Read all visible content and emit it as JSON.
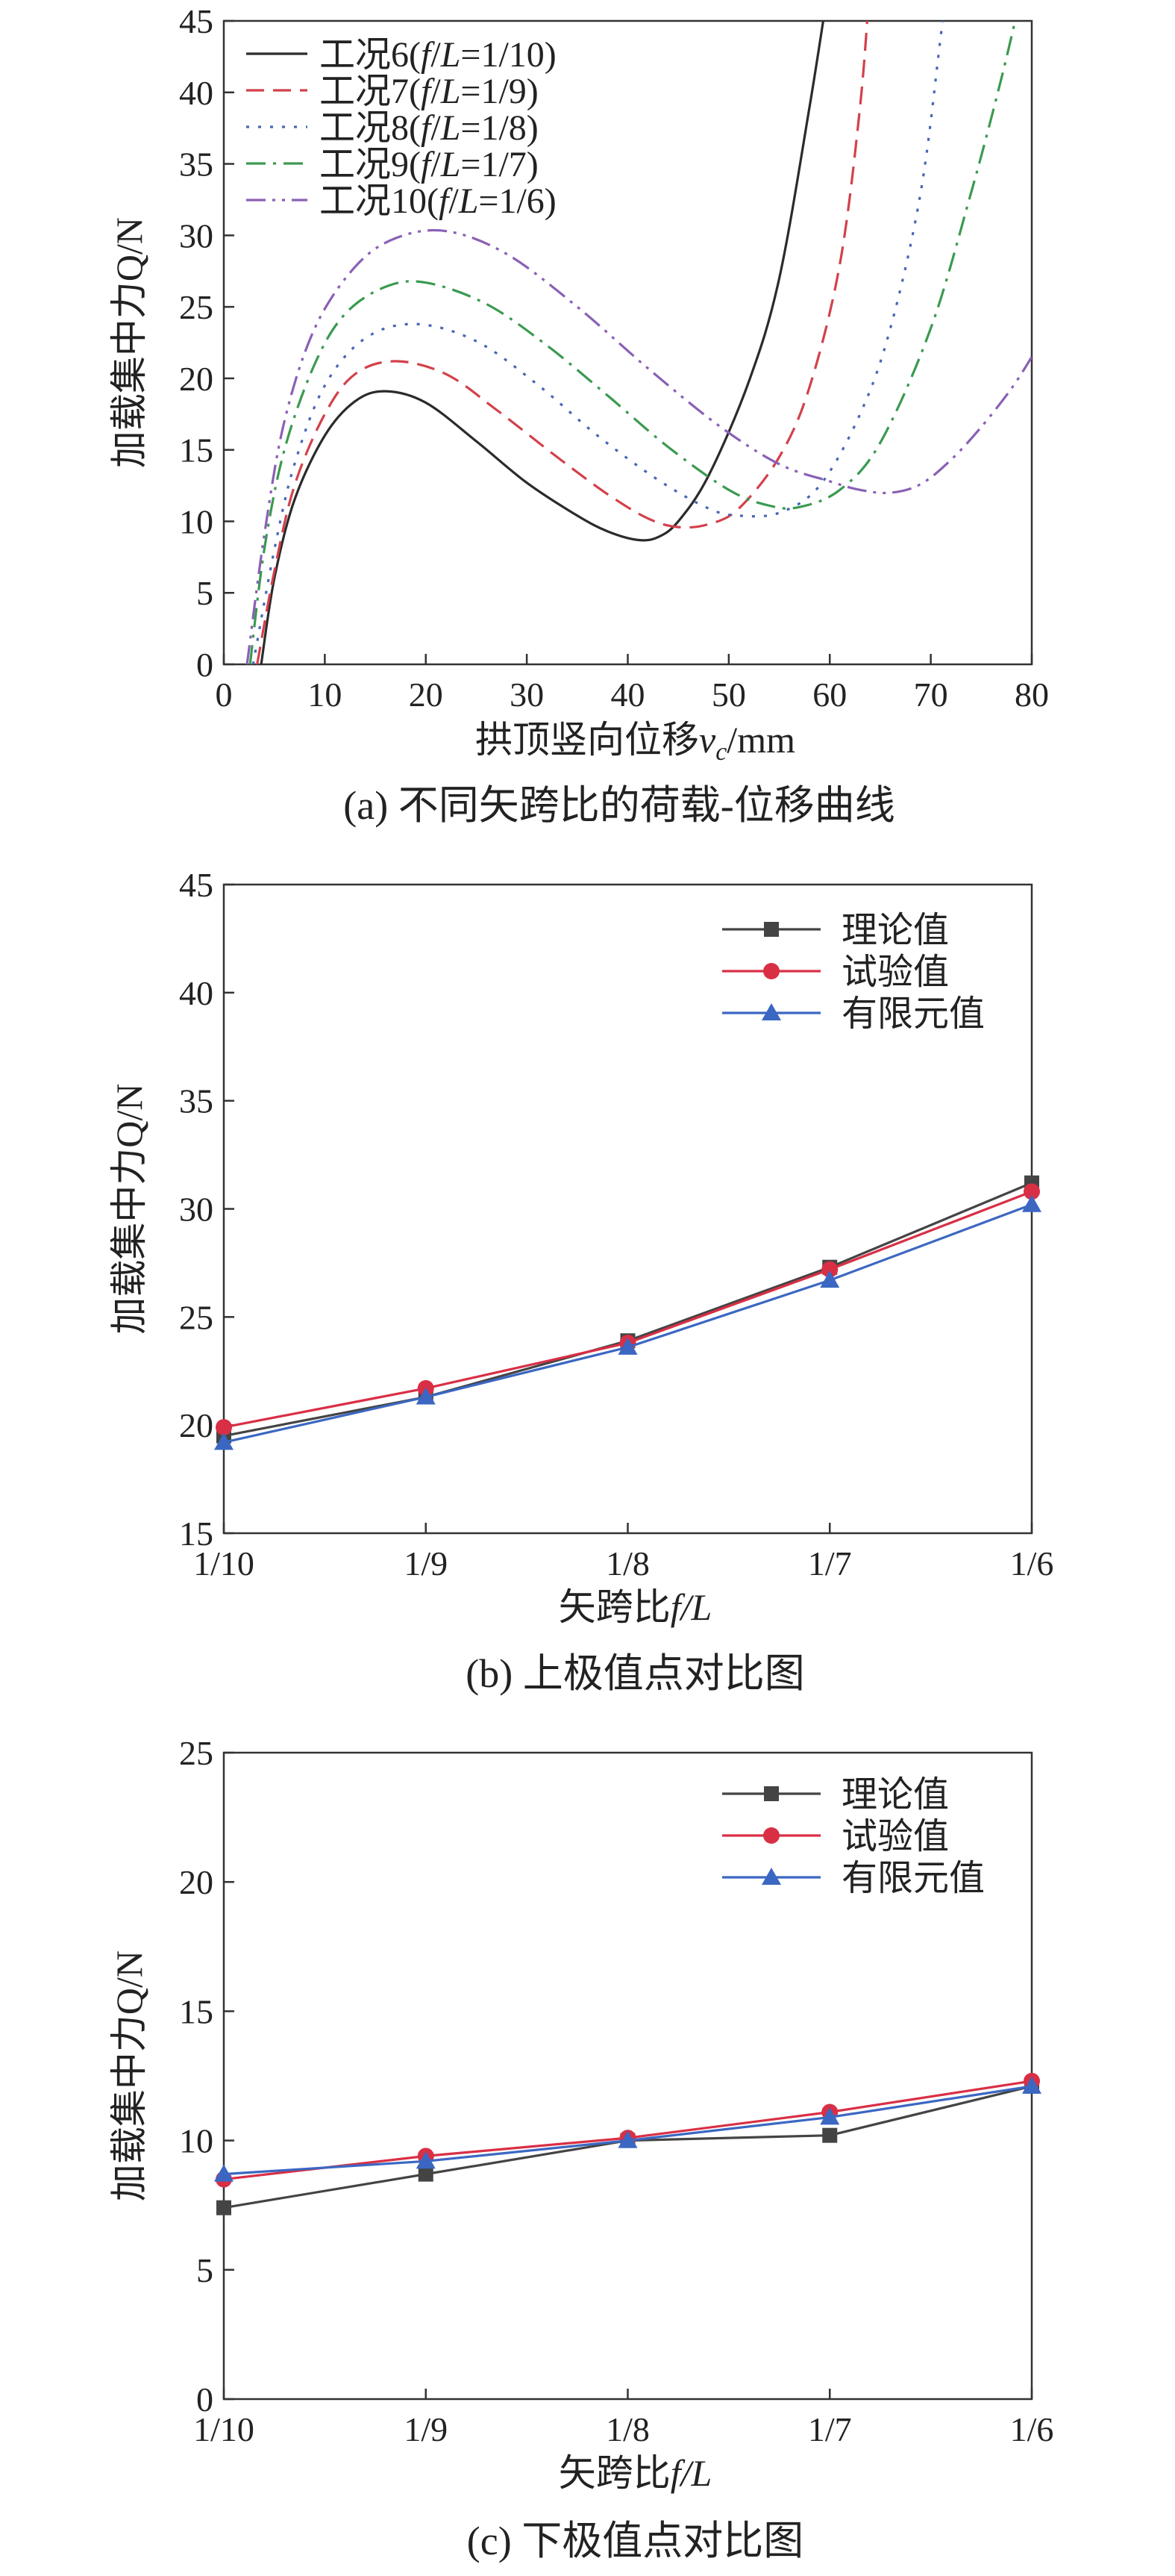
{
  "chart_data": [
    {
      "panel": "a",
      "type": "line",
      "caption": "(a) 不同矢跨比的荷载-位移曲线",
      "xlabel": "拱顶竖向位移v",
      "xlabel_sub": "c",
      "xlabel_unit": "/mm",
      "ylabel": "加载集中力Q/N",
      "xlim": [
        0,
        80
      ],
      "ylim": [
        0,
        45
      ],
      "xticks": [
        "0",
        "10",
        "20",
        "30",
        "40",
        "50",
        "60",
        "70",
        "80"
      ],
      "yticks": [
        "0",
        "5",
        "10",
        "15",
        "20",
        "25",
        "30",
        "35",
        "40",
        "45"
      ],
      "legend_position": "top-left",
      "series": [
        {
          "name": "工况6(f/L=1/10)",
          "name_prefix": "工况6(",
          "name_ratio": "1/10",
          "color": "#2b2b2b",
          "dash": "",
          "x": [
            3.7,
            5,
            7,
            10,
            13,
            16,
            20,
            25,
            30,
            35,
            38,
            41,
            43,
            45,
            48,
            52,
            55,
            58,
            60
          ],
          "y": [
            0,
            6,
            11.5,
            16,
            18.4,
            19.1,
            18.3,
            15.6,
            12.7,
            10.4,
            9.3,
            8.7,
            8.9,
            10,
            13.2,
            19.8,
            27,
            39,
            48
          ]
        },
        {
          "name": "工况7(f/L=1/9)",
          "name_prefix": "工况7(",
          "name_ratio": "1/9",
          "color": "#d2414b",
          "dash": "24,12",
          "x": [
            3.3,
            5,
            7,
            10,
            13,
            17,
            22,
            27,
            33,
            38,
            42,
            45,
            48,
            51,
            55,
            58,
            61,
            63,
            64
          ],
          "y": [
            0,
            6.5,
            12.5,
            17.5,
            20.3,
            21.2,
            20.3,
            17.8,
            14.5,
            11.9,
            10.2,
            9.6,
            9.8,
            10.9,
            14.5,
            19.4,
            28,
            39,
            48
          ]
        },
        {
          "name": "工况8(f/L=1/8)",
          "name_prefix": "工况8(",
          "name_ratio": "1/8",
          "color": "#4766b5",
          "dash": "4,12",
          "x": [
            2.9,
            5,
            7,
            10,
            14,
            19,
            25,
            31,
            37,
            43,
            48,
            51,
            55,
            59,
            63,
            66,
            69,
            71,
            72
          ],
          "y": [
            0,
            8,
            14,
            19.5,
            22.8,
            23.8,
            22.6,
            19.6,
            16,
            12.9,
            10.9,
            10.4,
            10.6,
            12.5,
            17.5,
            23.5,
            33,
            44,
            50
          ]
        },
        {
          "name": "工况9(f/L=1/7)",
          "name_prefix": "工况9(",
          "name_ratio": "1/7",
          "color": "#3a9a50",
          "dash": "26,10,4,10",
          "x": [
            2.6,
            4,
            6,
            9,
            12,
            16,
            20,
            26,
            32,
            38,
            44,
            50,
            54,
            57,
            61,
            65,
            70,
            74,
            77,
            79
          ],
          "y": [
            0,
            8,
            15,
            21,
            24.5,
            26.4,
            26.7,
            25.2,
            22.3,
            18.8,
            15.2,
            12.2,
            11.1,
            11,
            12.2,
            15.5,
            23.5,
            33,
            41,
            47
          ]
        },
        {
          "name": "工况10(f/L=1/6)",
          "name_prefix": "工况10(",
          "name_ratio": "1/6",
          "color": "#8a60b5",
          "dash": "26,9,4,9,4,9",
          "x": [
            2.3,
            4,
            6,
            9,
            13,
            17,
            22,
            28,
            35,
            42,
            49,
            55,
            60,
            63,
            66,
            69,
            72,
            75,
            78,
            80
          ],
          "y": [
            0,
            9,
            17,
            23.5,
            27.8,
            29.8,
            30.3,
            28.7,
            25,
            20.7,
            16.7,
            14,
            12.8,
            12.2,
            12,
            12.6,
            14.3,
            16.6,
            19.3,
            21.5
          ]
        }
      ]
    },
    {
      "panel": "b",
      "type": "line",
      "caption": "(b) 上极值点对比图",
      "xlabel": "矢跨比f/L",
      "ylabel": "加载集中力Q/N",
      "categories": [
        "1/10",
        "1/9",
        "1/8",
        "1/7",
        "1/6"
      ],
      "ylim": [
        15,
        45
      ],
      "yticks": [
        "15",
        "20",
        "25",
        "30",
        "35",
        "40",
        "45"
      ],
      "legend_position": "top-right",
      "series": [
        {
          "name": "理论值",
          "color": "#444444",
          "marker": "square",
          "values": [
            19.5,
            21.3,
            23.9,
            27.3,
            31.2
          ]
        },
        {
          "name": "试验值",
          "color": "#d92f45",
          "marker": "circle",
          "values": [
            19.9,
            21.7,
            23.8,
            27.2,
            30.8
          ]
        },
        {
          "name": "有限元值",
          "color": "#3b67c2",
          "marker": "triangle",
          "values": [
            19.2,
            21.3,
            23.6,
            26.7,
            30.2
          ]
        }
      ]
    },
    {
      "panel": "c",
      "type": "line",
      "caption": "(c) 下极值点对比图",
      "xlabel": "矢跨比f/L",
      "ylabel": "加载集中力Q/N",
      "categories": [
        "1/10",
        "1/9",
        "1/8",
        "1/7",
        "1/6"
      ],
      "ylim": [
        0,
        25
      ],
      "yticks": [
        "0",
        "5",
        "10",
        "15",
        "20",
        "25"
      ],
      "legend_position": "top-right",
      "series": [
        {
          "name": "理论值",
          "color": "#444444",
          "marker": "square",
          "values": [
            7.4,
            8.7,
            10.0,
            10.2,
            12.1
          ]
        },
        {
          "name": "试验值",
          "color": "#d92f45",
          "marker": "circle",
          "values": [
            8.5,
            9.4,
            10.1,
            11.1,
            12.3
          ]
        },
        {
          "name": "有限元值",
          "color": "#3b67c2",
          "marker": "triangle",
          "values": [
            8.7,
            9.2,
            10.0,
            10.9,
            12.1
          ]
        }
      ]
    }
  ]
}
